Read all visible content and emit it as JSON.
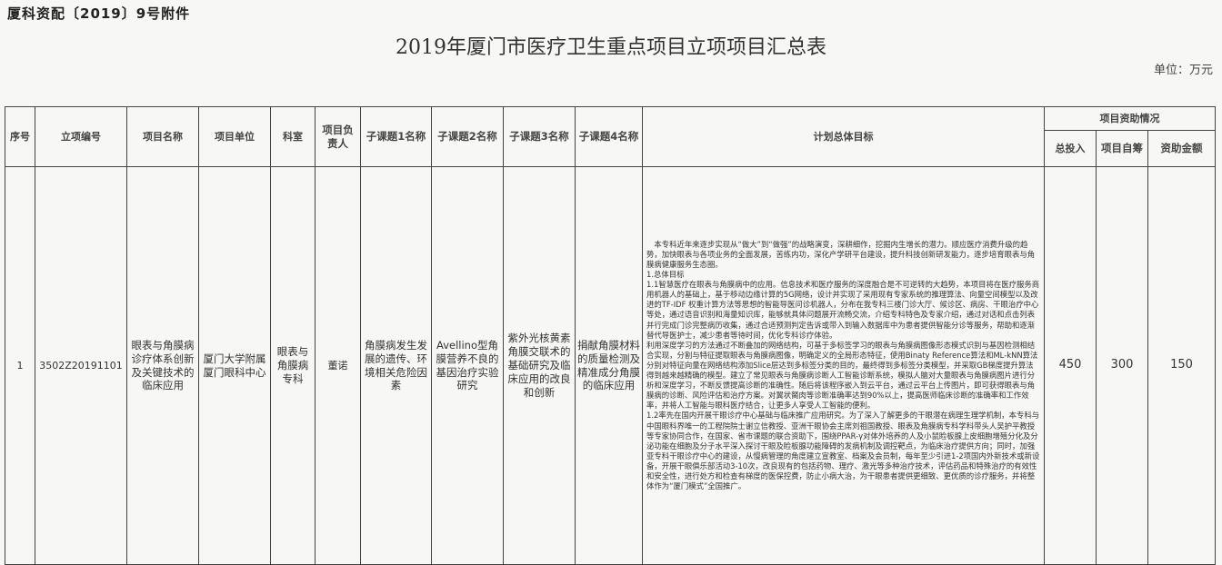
{
  "doc_no": "厦科资配〔2019〕9号附件",
  "title": "2019年厦门市医疗卫生重点项目立项项目汇总表",
  "unit": "单位：万元",
  "headers": {
    "seq": "序号",
    "code": "立项编号",
    "name": "项目名称",
    "org": "项目单位",
    "dept": "科室",
    "leader": "项目负责人",
    "sub1": "子课题1名称",
    "sub2": "子课题2名称",
    "sub3": "子课题3名称",
    "sub4": "子课题4名称",
    "goal": "计划总体目标",
    "funding": "项目资助情况",
    "total": "总投入",
    "self": "项目自筹",
    "grant": "资助金额"
  },
  "rows": [
    {
      "seq": "1",
      "code": "3502Z20191101",
      "name": "眼表与角膜病诊疗体系创新及关键技术的临床应用",
      "org": "厦门大学附属厦门眼科中心",
      "dept": "眼表与角膜病专科",
      "leader": "董诺",
      "sub1": "角膜病发生发展的遗传、环境相关危险因素",
      "sub2": "Avellino型角膜营养不良的基因治疗实验研究",
      "sub3": "紫外光核黄素角膜交联术的基础研究及临床应用的改良和创新",
      "sub4": "捐献角膜材料的质量检测及精准成分角膜的临床应用",
      "goal": [
        "本专科近年来逐步实现从“做大”到“做强”的战略演变，深耕细作，挖掘内生增长的潜力。顺应医疗消费升级的趋势，加快眼表与各项业务的全面发展，苦练内功，深化产学研平台建设，提升科技创新研发能力，逐步培育眼表与角膜病健康服务生态圈。",
        "1.总体目标",
        "1.1智慧医疗在眼表与角膜病中的应用。信息技术和医疗服务的深度融合是不可逆转的大趋势，本项目将在医疗服务商用机器人的基础上，基于移动边缘计算的5G网络，设计并实现了采用现有专家系统的推理算法、向量空间模型以及改进的TF-IDF 权重计算方法等思想的智能导医问诊机器人，分布在我专科三楼门诊大厅、候诊区、病房、干眼治疗中心等处，通过语音识别和海量知识库，能够就具体问题展开流畅交流，介绍专科特色及专家介绍，通过对话和点击列表并行完成门诊完整病历收集，通过合适预测判定告诉或带入到输入数据库中为患者提供智能分诊等服务，帮助和逐渐替代导医护士，减少患者等待时间，优化专科诊疗体验。",
        "利用深度学习的方法通过不断叠加的网络结构，可基于多标签学习的眼表与角膜病图像形态模式识别与基因检测相结合实现，分割与特征提取眼表与角膜病图像，明确定义的全局形态特征，使用Binaty Reference算法和ML-kNN算法分别对特征向量在网络结构添加Slice层达到多标签分类的目的，最终得到多标签分类模型，并采取GB梯度提升算法得到越来越精确的模型。建立了常见眼表与角膜病诊断人工智能诊断系统，模拟人脑对大量眼表与角膜病图片进行分析和深度学习，不断反馈提高诊断的准确性。随后将该程序嵌入到云平台，通过云平台上传图片，即可获得眼表与角膜病的诊断、风险评估和治疗方案。对翼状胬肉等诊断准确率达到90%以上，提高医师临床诊断的准确率和工作效率，并将人工智能与眼科医疗结合，让更多人享受人工智能的便利。",
        "1.2率先在国内开展干眼诊疗中心基础与临床推广应用研究。为了深入了解更多的干眼潜在病理生理学机制，本专科与中国眼科界唯一的工程院院士谢立信教授、亚洲干眼协会主席刘祖国教授、眼表及角膜病专科学科带头人吴护平教授等专家协同合作，在国家、省市课题的联合资助下，围绕PPAR-γ对体外培养的人及小鼠睑板腺上皮细胞增殖分化及分泌功能在细胞及分子水平深入探讨干眼及睑板腺功能障碍的发病机制及调控靶点，为临床治疗提供方向；同时，加强亚专科干眼诊疗中心的建设，从慢病管理的角度建立宣教室、档案及会员制，每年至少引进1-2项国内外新技术或新设备，开展干眼俱乐部活动3-10次，改良现有的包括药物、理疗、激光等多种治疗技术，评估药品和特殊治疗的有效性和安全性，进行处方和检查有梯度的医保控费，防止小病大治，为干眼患者提供更细致、更优质的诊疗服务，并将整体作为“厦门模式”全国推广。"
      ],
      "total": "450",
      "self": "300",
      "grant": "150"
    }
  ]
}
